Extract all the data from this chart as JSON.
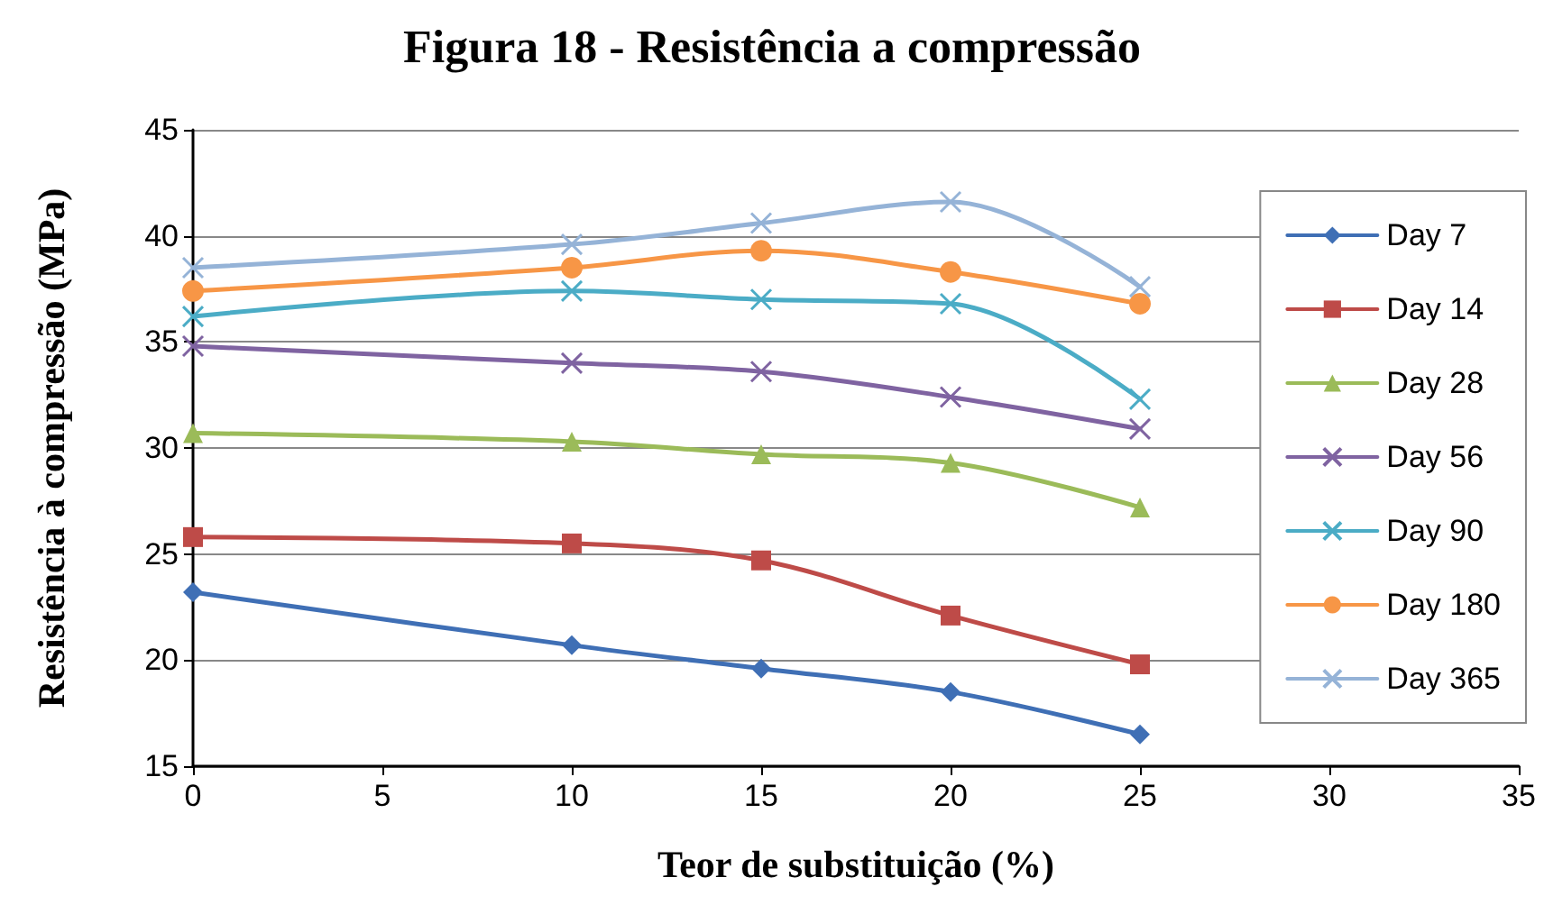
{
  "chart_data": {
    "type": "line",
    "title": "Figura 18 - Resistência a compressão",
    "xlabel": "Teor de substituição (%)",
    "ylabel": "Resistência à compressão (MPa)",
    "x": [
      0,
      10,
      15,
      20,
      25
    ],
    "series": [
      {
        "name": "Day 7",
        "color": "#3f6fb5",
        "marker": "diamond",
        "values": [
          23.2,
          20.7,
          19.6,
          18.5,
          16.5
        ]
      },
      {
        "name": "Day 14",
        "color": "#be4b48",
        "marker": "square",
        "values": [
          25.8,
          25.5,
          24.7,
          22.1,
          19.8
        ]
      },
      {
        "name": "Day 28",
        "color": "#9bbb59",
        "marker": "triangle",
        "values": [
          30.7,
          30.3,
          29.7,
          29.3,
          27.2
        ]
      },
      {
        "name": "Day 56",
        "color": "#7f63a1",
        "marker": "cross",
        "values": [
          34.8,
          34.0,
          33.6,
          32.4,
          30.9
        ]
      },
      {
        "name": "Day 90",
        "color": "#4bacc6",
        "marker": "cross",
        "values": [
          36.2,
          37.4,
          37.0,
          36.8,
          32.3
        ]
      },
      {
        "name": "Day 180",
        "color": "#f79646",
        "marker": "circle",
        "values": [
          37.4,
          38.5,
          39.3,
          38.3,
          36.8
        ]
      },
      {
        "name": "Day 365",
        "color": "#95b3d7",
        "marker": "cross",
        "values": [
          38.5,
          39.6,
          40.6,
          41.6,
          37.6
        ]
      }
    ],
    "xlim": [
      0,
      35
    ],
    "xticks": [
      0,
      5,
      10,
      15,
      20,
      25,
      30,
      35
    ],
    "ylim": [
      15,
      45
    ],
    "yticks": [
      15,
      20,
      25,
      30,
      35,
      40,
      45
    ],
    "grid": "y",
    "legend": "right",
    "line_style": "solid"
  }
}
